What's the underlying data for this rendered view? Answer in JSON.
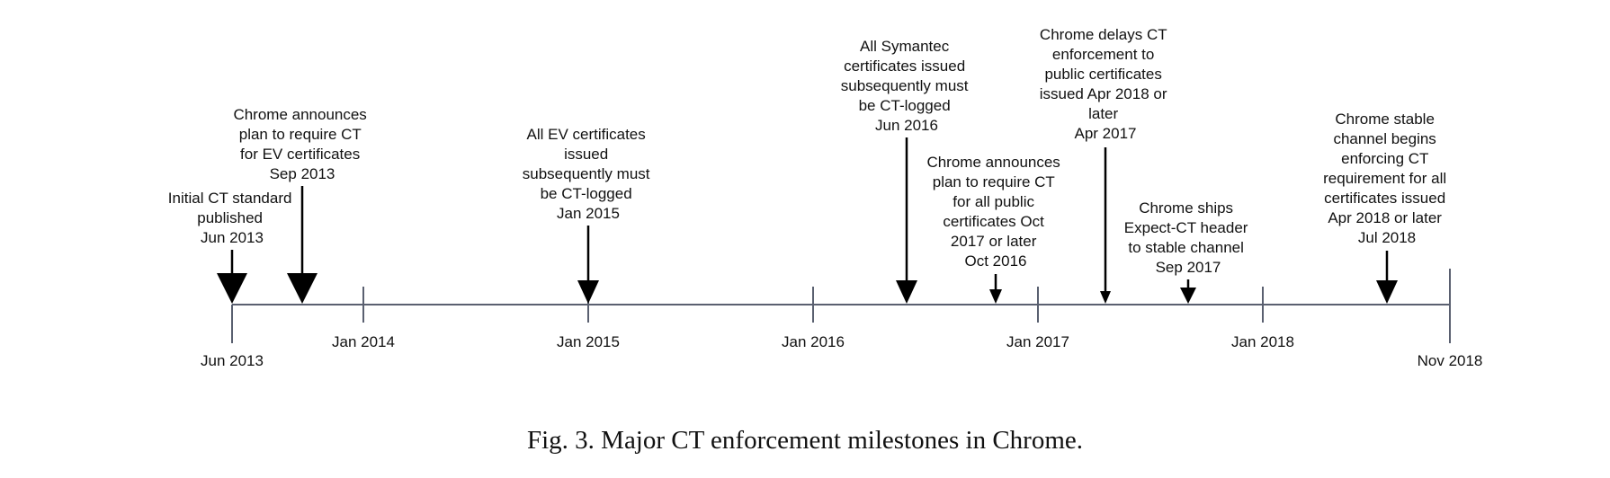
{
  "timeline": {
    "start_label": "Jun 2013",
    "end_label": "Nov 2018",
    "ticks": [
      "Jan 2014",
      "Jan 2015",
      "Jan 2016",
      "Jan 2017",
      "Jan 2018"
    ],
    "events": [
      {
        "id": "initial-ct-standard",
        "lines": [
          "Initial CT standard",
          "published",
          "Jun 2013"
        ],
        "size": "large"
      },
      {
        "id": "chrome-ev-plan",
        "lines": [
          "Chrome announces",
          "plan to require CT",
          "for EV certificates",
          "Sep 2013"
        ],
        "size": "large"
      },
      {
        "id": "ev-certificates",
        "lines": [
          "All EV certificates",
          "issued",
          "subsequently must",
          "be CT-logged",
          "Jan 2015"
        ],
        "size": "medium"
      },
      {
        "id": "symantec-certificates",
        "lines": [
          "All Symantec",
          "certificates issued",
          "subsequently must",
          "be CT-logged",
          "Jun 2016"
        ],
        "size": "medium"
      },
      {
        "id": "chrome-public-plan",
        "lines": [
          "Chrome announces",
          "plan to require CT",
          "for all public",
          "certificates Oct",
          "2017 or later",
          "Oct 2016"
        ],
        "size": "small"
      },
      {
        "id": "chrome-delays",
        "lines": [
          "Chrome delays CT",
          "enforcement to",
          "public certificates",
          "issued Apr 2018 or",
          "later",
          "Apr 2017"
        ],
        "size": "small"
      },
      {
        "id": "expect-ct-header",
        "lines": [
          "Chrome ships",
          "Expect-CT header",
          "to stable channel",
          "Sep 2017"
        ],
        "size": "small"
      },
      {
        "id": "chrome-stable-enforcing",
        "lines": [
          "Chrome stable",
          "channel begins",
          "enforcing CT",
          "requirement for all",
          "certificates issued",
          "Apr 2018 or later",
          "Jul 2018"
        ],
        "size": "medium"
      }
    ]
  },
  "caption": "Fig. 3.  Major CT enforcement milestones in Chrome."
}
